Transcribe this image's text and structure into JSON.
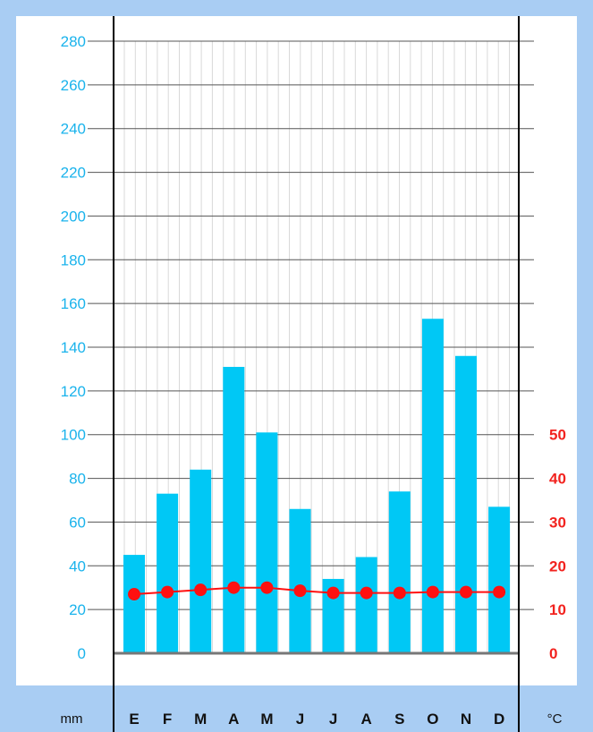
{
  "chart_data": {
    "type": "bar+line",
    "title": "",
    "categories": [
      "E",
      "F",
      "M",
      "A",
      "M",
      "J",
      "J",
      "A",
      "S",
      "O",
      "N",
      "D"
    ],
    "series": [
      {
        "axis": "left",
        "type": "bar",
        "values": [
          45,
          73,
          84,
          131,
          101,
          66,
          34,
          44,
          74,
          153,
          136,
          67
        ]
      },
      {
        "axis": "right",
        "type": "line",
        "values": [
          13.5,
          14,
          14.5,
          15,
          15,
          14.3,
          13.8,
          13.8,
          13.8,
          14,
          14,
          14
        ]
      }
    ],
    "left_axis": {
      "unit": "mm",
      "ylim": [
        0,
        280
      ],
      "ticks": [
        "0",
        "20",
        "40",
        "60",
        "80",
        "100",
        "120",
        "140",
        "160",
        "180",
        "200",
        "220",
        "240",
        "260",
        "280"
      ]
    },
    "right_axis": {
      "unit": "°C",
      "ylim": [
        0,
        50
      ],
      "ticks": [
        "0",
        "10",
        "20",
        "30",
        "40",
        "50"
      ]
    },
    "grid": true,
    "colors": {
      "bar": "#00c8f5",
      "line": "#ff1010",
      "left_ticks": "#1ab3ec",
      "right_ticks": "#f2231f",
      "frame": "#a9cdf3"
    }
  }
}
